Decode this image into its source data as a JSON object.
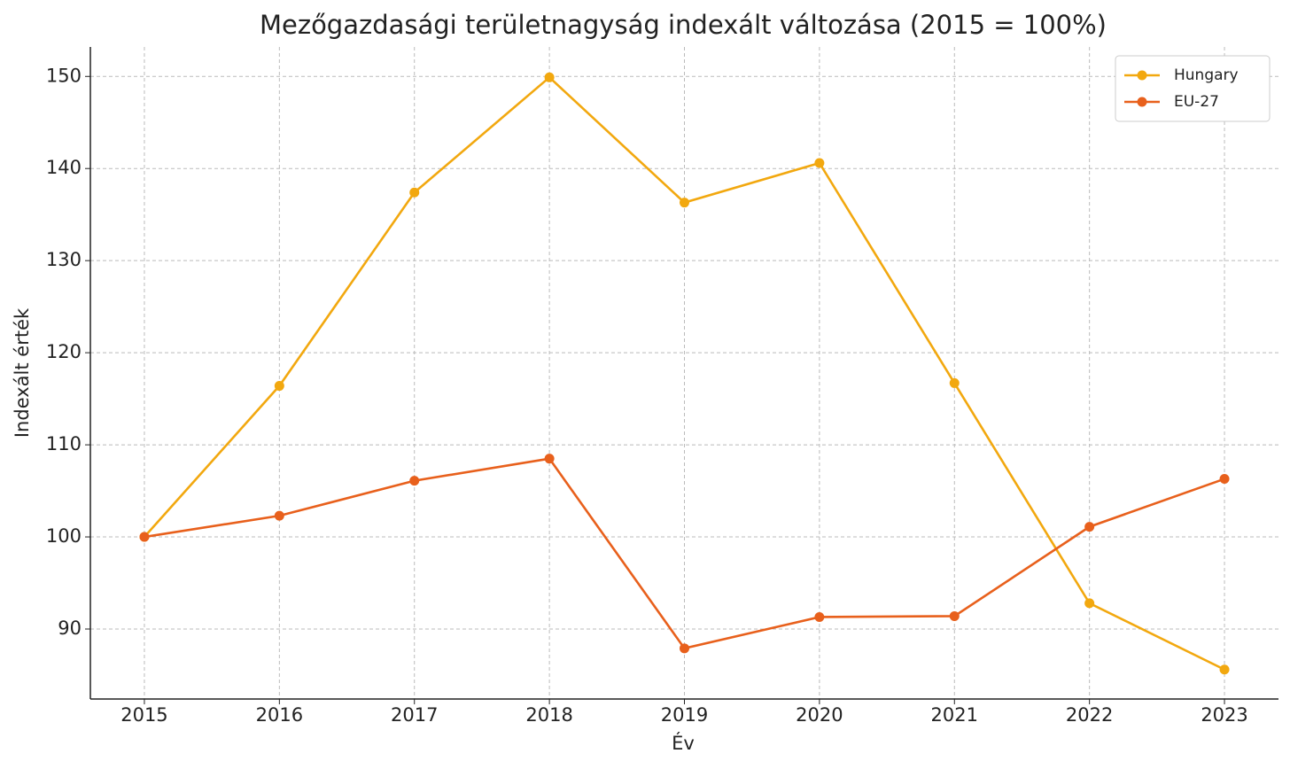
{
  "chart_data": {
    "type": "line",
    "title": "Mezőgazdasági területnagyság indexált változása (2015 = 100%)",
    "x_label": "Év",
    "y_label": "Indexált érték",
    "x": [
      2015,
      2016,
      2017,
      2018,
      2019,
      2020,
      2021,
      2022,
      2023
    ],
    "series": [
      {
        "name": "Hungary",
        "color": "#f2a80f",
        "values": [
          100,
          116.4,
          137.4,
          149.9,
          136.3,
          140.6,
          116.7,
          92.8,
          85.6
        ]
      },
      {
        "name": "EU-27",
        "color": "#e8601c",
        "values": [
          100,
          102.3,
          106.1,
          108.5,
          87.9,
          91.3,
          91.4,
          101.1,
          106.3
        ]
      }
    ],
    "xlim": [
      2014.6,
      2023.4
    ],
    "xticks": [
      2015,
      2016,
      2017,
      2018,
      2019,
      2020,
      2021,
      2022,
      2023
    ],
    "ylim": [
      82.4,
      153.2
    ],
    "yticks": [
      90,
      100,
      110,
      120,
      130,
      140,
      150
    ],
    "grid": true,
    "legend": "upper right"
  }
}
